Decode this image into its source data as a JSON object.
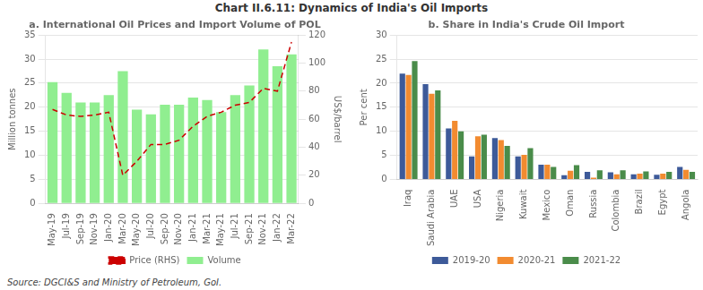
{
  "title": "Chart II.6.11: Dynamics of India's Oil Imports",
  "annotations": [
    "Source: DGCI&S and Ministry of Petroleum, GoI."
  ],
  "chart_data": [
    {
      "type": "bar",
      "title": "a. International Oil Prices and Import Volume of POL",
      "categories": [
        "May-19",
        "Jul-19",
        "Sep-19",
        "Nov-19",
        "Jan-20",
        "Mar-20",
        "May-20",
        "Jul-20",
        "Sep-20",
        "Nov-20",
        "Jan-21",
        "Mar-21",
        "May-21",
        "Jul-21",
        "Sep-21",
        "Nov-21",
        "Jan-22",
        "Mar-22"
      ],
      "series": [
        {
          "name": "Volume",
          "type": "bar",
          "color": "#90EE90",
          "values": [
            25.2,
            23.0,
            21.0,
            21.0,
            22.5,
            27.5,
            19.5,
            18.5,
            20.5,
            20.5,
            22.0,
            21.5,
            19.0,
            22.5,
            24.5,
            32.0,
            28.5,
            31.0
          ]
        },
        {
          "name": "Price (RHS)",
          "type": "line",
          "color": "#CC0000",
          "line_style": "dashed",
          "axis": "y2",
          "values": [
            67,
            63,
            62,
            63,
            65,
            20,
            30,
            42,
            42,
            45,
            55,
            62,
            65,
            70,
            72,
            82,
            80,
            115
          ]
        }
      ],
      "ylabel": "Million tonnes",
      "y2label": "US$/barrel",
      "ylim": [
        0,
        35
      ],
      "yticks": [
        0,
        5,
        10,
        15,
        20,
        25,
        30,
        35
      ],
      "y2lim": [
        0,
        120
      ],
      "y2ticks": [
        0,
        20,
        40,
        60,
        80,
        100,
        120
      ],
      "grid": true,
      "legend": "bottom"
    },
    {
      "type": "bar",
      "title": "b. Share in India's Crude Oil Import",
      "categories": [
        "Iraq",
        "Saudi Arabia",
        "UAE",
        "USA",
        "Nigeria",
        "Kuwait",
        "Mexico",
        "Oman",
        "Russia",
        "Colombia",
        "Brazil",
        "Egypt",
        "Angola"
      ],
      "series": [
        {
          "name": "2019-20",
          "color": "#3d5a99",
          "values": [
            22.0,
            19.8,
            10.6,
            4.8,
            8.6,
            4.8,
            3.1,
            0.9,
            1.6,
            1.5,
            1.1,
            1.0,
            2.6
          ]
        },
        {
          "name": "2020-21",
          "color": "#f28b30",
          "values": [
            21.7,
            17.8,
            12.2,
            9.0,
            8.2,
            5.1,
            3.1,
            1.8,
            0.4,
            1.1,
            1.2,
            1.2,
            2.0
          ]
        },
        {
          "name": "2021-22",
          "color": "#4a8c4a",
          "values": [
            24.6,
            18.5,
            10.0,
            9.3,
            7.0,
            6.5,
            2.6,
            3.0,
            1.9,
            1.9,
            1.7,
            1.6,
            1.6
          ]
        }
      ],
      "ylabel": "Per cent",
      "ylim": [
        0,
        30
      ],
      "yticks": [
        0,
        5,
        10,
        15,
        20,
        25,
        30
      ],
      "grid": true,
      "legend": "bottom"
    }
  ]
}
